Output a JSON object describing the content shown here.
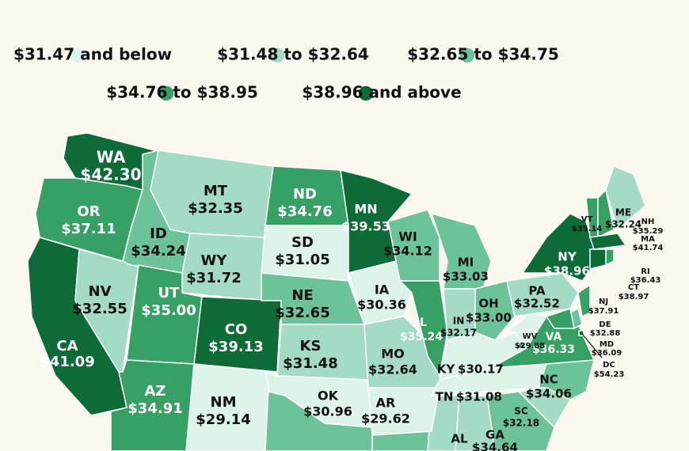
{
  "legend": [
    {
      "label": "$31.47 and below",
      "color": "#def3ea"
    },
    {
      "label": "$31.48 to $32.64",
      "color": "#a3dbc5"
    },
    {
      "label": "$32.65 to $34.75",
      "color": "#6cc39a"
    },
    {
      "label": "$34.76 to $38.95",
      "color": "#36a065"
    },
    {
      "label": "$38.96 and above",
      "color": "#0d6b38"
    }
  ],
  "states": [
    {
      "code": "WA",
      "value": "$42.30",
      "color": "#0d6b38"
    },
    {
      "code": "OR",
      "value": "$37.11",
      "color": "#36a065"
    },
    {
      "code": "CA",
      "value": "$41.09",
      "color": "#0d6b38"
    },
    {
      "code": "NV",
      "value": "$32.55",
      "color": "#a3dbc5"
    },
    {
      "code": "ID",
      "value": "$34.24",
      "color": "#6cc39a"
    },
    {
      "code": "MT",
      "value": "$32.35",
      "color": "#a3dbc5"
    },
    {
      "code": "WY",
      "value": "$31.72",
      "color": "#a3dbc5"
    },
    {
      "code": "UT",
      "value": "$35.00",
      "color": "#36a065"
    },
    {
      "code": "AZ",
      "value": "$34.91",
      "color": "#36a065"
    },
    {
      "code": "CO",
      "value": "$39.13",
      "color": "#0d6b38"
    },
    {
      "code": "NM",
      "value": "$29.14",
      "color": "#def3ea"
    },
    {
      "code": "ND",
      "value": "$34.76",
      "color": "#36a065"
    },
    {
      "code": "SD",
      "value": "$31.05",
      "color": "#def3ea"
    },
    {
      "code": "NE",
      "value": "$32.65",
      "color": "#6cc39a"
    },
    {
      "code": "KS",
      "value": "$31.48",
      "color": "#a3dbc5"
    },
    {
      "code": "OK",
      "value": "$30.96",
      "color": "#def3ea"
    },
    {
      "code": "MN",
      "value": "$39.53",
      "color": "#0d6b38"
    },
    {
      "code": "IA",
      "value": "$30.36",
      "color": "#def3ea"
    },
    {
      "code": "MO",
      "value": "$32.64",
      "color": "#a3dbc5"
    },
    {
      "code": "AR",
      "value": "$29.62",
      "color": "#def3ea"
    },
    {
      "code": "WI",
      "value": "$34.12",
      "color": "#6cc39a"
    },
    {
      "code": "IL",
      "value": "$35.24",
      "color": "#36a065"
    },
    {
      "code": "MI",
      "value": "$33.03",
      "color": "#6cc39a"
    },
    {
      "code": "IN",
      "value": "$32.17",
      "color": "#a3dbc5"
    },
    {
      "code": "OH",
      "value": "$33.00",
      "color": "#6cc39a"
    },
    {
      "code": "KY",
      "value": "$30.17",
      "color": "#def3ea"
    },
    {
      "code": "TN",
      "value": "$31.08",
      "color": "#def3ea"
    },
    {
      "code": "AL",
      "color": "#a3dbc5"
    },
    {
      "code": "GA",
      "value": "$34.64",
      "color": "#6cc39a"
    },
    {
      "code": "SC",
      "value": "$32.18",
      "color": "#a3dbc5"
    },
    {
      "code": "NC",
      "value": "$34.06",
      "color": "#6cc39a"
    },
    {
      "code": "VA",
      "value": "$36.33",
      "color": "#36a065"
    },
    {
      "code": "WV",
      "value": "$29.88",
      "color": "#def3ea"
    },
    {
      "code": "PA",
      "value": "$32.52",
      "color": "#a3dbc5"
    },
    {
      "code": "NY",
      "value": "$38.96",
      "color": "#0d6b38"
    },
    {
      "code": "VT",
      "value": "$35.14",
      "color": "#36a065"
    },
    {
      "code": "ME",
      "value": "$32.24",
      "color": "#a3dbc5"
    },
    {
      "code": "NH",
      "value": "$35.29",
      "color": "#36a065"
    },
    {
      "code": "MA",
      "value": "$41.74",
      "color": "#0d6b38"
    },
    {
      "code": "RI",
      "value": "$36.43",
      "color": "#36a065"
    },
    {
      "code": "CT",
      "value": "$38.97",
      "color": "#0d6b38"
    },
    {
      "code": "NJ",
      "value": "$37.91",
      "color": "#36a065"
    },
    {
      "code": "DE",
      "value": "$32.88",
      "color": "#6cc39a"
    },
    {
      "code": "MD",
      "value": "$36.09",
      "color": "#36a065"
    },
    {
      "code": "DC",
      "value": "$54.23",
      "color": "#0d6b38"
    }
  ]
}
